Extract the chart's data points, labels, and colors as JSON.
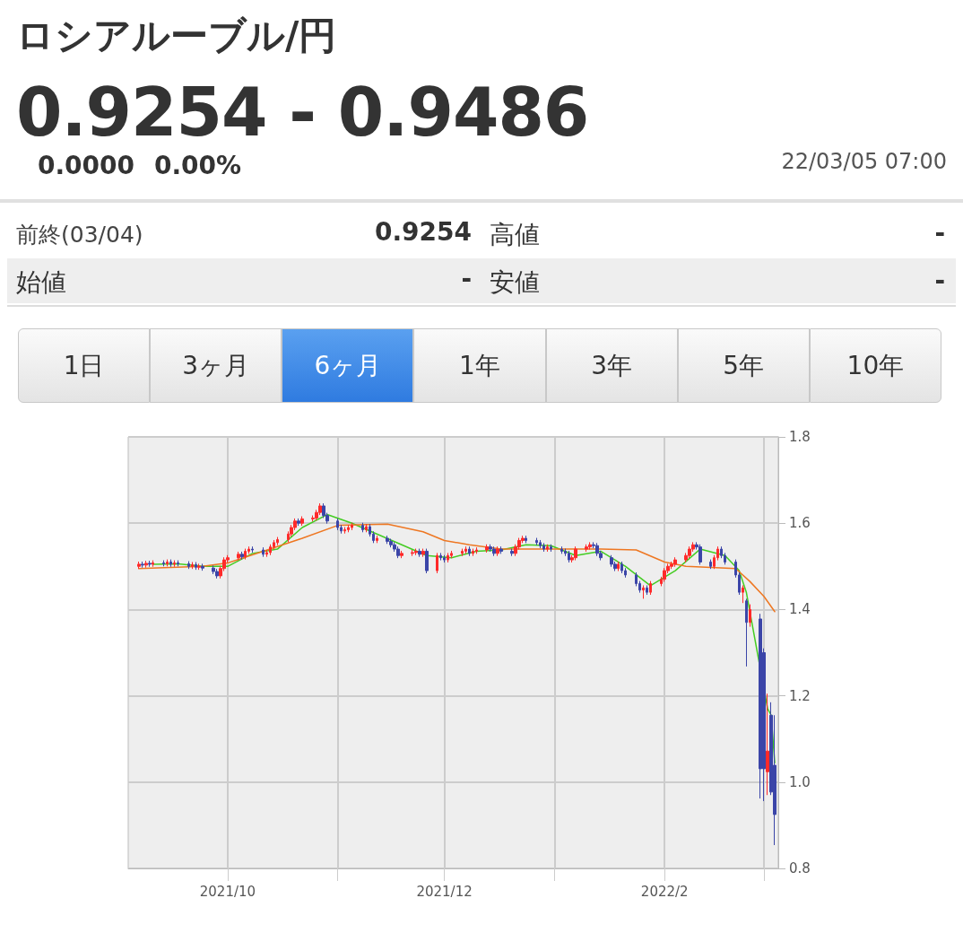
{
  "chart_data": {
    "type": "candlestick",
    "title": "ロシアルーブル/円",
    "subtitle": "0.9254 - 0.9486",
    "annotations": [
      "0.0000",
      "0.00%",
      "22/03/05 07:00",
      "前終(03/04)",
      "0.9254",
      "高値",
      "-",
      "始値",
      "-",
      "安値",
      "-",
      "1日",
      "3ヶ月",
      "6ヶ月",
      "1年",
      "3年",
      "5年",
      "10年"
    ],
    "colors": [
      "#ff2a2a",
      "#3b45a8",
      "#ff2a2a",
      "#3b45a8",
      "#ff2a2a",
      "#3b45a8",
      "#ff2a2a",
      "#3b45a8",
      "#ff2a2a",
      "#3b45a8",
      "#3b45a8",
      "#ff2a2a",
      "#3b45a8",
      "#ff2a2a",
      "#3b45a8",
      "#3b45a8",
      "#3b45a8",
      "#ff2a2a",
      "#ff2a2a",
      "#ff2a2a",
      "#ff2a2a",
      "#3b45a8",
      "#ff2a2a",
      "#ff2a2a",
      "#3b45a8",
      "#3b45a8",
      "#ff2a2a",
      "#ff2a2a",
      "#ff2a2a",
      "#ff2a2a",
      "#ff2a2a",
      "#ff2a2a",
      "#ff2a2a",
      "#3b45a8",
      "#ff2a2a",
      "#ff2a2a",
      "#ff2a2a",
      "#ff2a2a",
      "#3b45a8",
      "#3b45a8",
      "#3b45a8",
      "#3b45a8",
      "#ff2a2a",
      "#ff2a2a",
      "#ff2a2a",
      "#3b45a8",
      "#ff2a2a",
      "#3b45a8",
      "#3b45a8",
      "#ff2a2a",
      "#3b45a8",
      "#3b45a8",
      "#3b45a8",
      "#3b45a8",
      "#ff2a2a",
      "#ff2a2a",
      "#ff2a2a",
      "#3b45a8",
      "#ff2a2a",
      "#3b45a8",
      "#ff2a2a",
      "#3b45a8",
      "#3b45a8",
      "#ff2a2a",
      "#ff2a2a",
      "#ff2a2a",
      "#ff2a2a",
      "#3b45a8",
      "#ff2a2a",
      "#ff2a2a",
      "#ff2a2a",
      "#3b45a8",
      "#3b45a8",
      "#ff2a2a",
      "#3b45a8",
      "#3b45a8",
      "#ff2a2a",
      "#ff2a2a",
      "#ff2a2a",
      "#3b45a8",
      "#3b45a8",
      "#3b45a8",
      "#3b45a8",
      "#ff2a2a",
      "#3b45a8",
      "#3b45a8",
      "#3b45a8",
      "#3b45a8",
      "#ff2a2a",
      "#ff2a2a",
      "#ff2a2a",
      "#ff2a2a",
      "#3b45a8",
      "#3b45a8",
      "#3b45a8",
      "#3b45a8",
      "#3b45a8",
      "#ff2a2a",
      "#3b45a8",
      "#3b45a8",
      "#3b45a8",
      "#3b45a8",
      "#ff2a2a",
      "#3b45a8",
      "#ff2a2a",
      "#ff2a2a",
      "#ff2a2a",
      "#ff2a2a",
      "#ff2a2a",
      "#ff2a2a",
      "#ff2a2a",
      "#ff2a2a",
      "#ff2a2a",
      "#3b45a8",
      "#3b45a8",
      "#3b45a8",
      "#ff2a2a",
      "#ff2a2a",
      "#3b45a8",
      "#3b45a8",
      "#3b45a8",
      "#3b45a8",
      "#ff2a2a",
      "#3b45a8",
      "#ff2a2a",
      "#3b45a8",
      "#3b45a8",
      "#ff2a2a",
      "#3b45a8",
      "#3b45a8"
    ],
    "x": [
      "2021-09-06",
      "2021-09-07",
      "2021-09-08",
      "2021-09-09",
      "2021-09-10",
      "2021-09-13",
      "2021-09-14",
      "2021-09-15",
      "2021-09-16",
      "2021-09-17",
      "2021-09-20",
      "2021-09-21",
      "2021-09-22",
      "2021-09-23",
      "2021-09-24",
      "2021-09-27",
      "2021-09-28",
      "2021-09-29",
      "2021-09-30",
      "2021-10-01",
      "2021-10-04",
      "2021-10-05",
      "2021-10-06",
      "2021-10-07",
      "2021-10-08",
      "2021-10-11",
      "2021-10-12",
      "2021-10-13",
      "2021-10-14",
      "2021-10-15",
      "2021-10-18",
      "2021-10-19",
      "2021-10-20",
      "2021-10-21",
      "2021-10-22",
      "2021-10-25",
      "2021-10-26",
      "2021-10-27",
      "2021-10-28",
      "2021-10-29",
      "2021-11-01",
      "2021-11-02",
      "2021-11-03",
      "2021-11-04",
      "2021-11-05",
      "2021-11-08",
      "2021-11-09",
      "2021-11-10",
      "2021-11-11",
      "2021-11-12",
      "2021-11-15",
      "2021-11-16",
      "2021-11-17",
      "2021-11-18",
      "2021-11-19",
      "2021-11-22",
      "2021-11-23",
      "2021-11-24",
      "2021-11-25",
      "2021-11-26",
      "2021-11-29",
      "2021-11-30",
      "2021-12-01",
      "2021-12-02",
      "2021-12-03",
      "2021-12-06",
      "2021-12-07",
      "2021-12-08",
      "2021-12-09",
      "2021-12-10",
      "2021-12-13",
      "2021-12-14",
      "2021-12-15",
      "2021-12-16",
      "2021-12-17",
      "2021-12-20",
      "2021-12-21",
      "2021-12-22",
      "2021-12-23",
      "2021-12-24",
      "2021-12-27",
      "2021-12-28",
      "2021-12-29",
      "2021-12-30",
      "2021-12-31",
      "2022-01-03",
      "2022-01-04",
      "2022-01-05",
      "2022-01-06",
      "2022-01-07",
      "2022-01-10",
      "2022-01-11",
      "2022-01-12",
      "2022-01-13",
      "2022-01-14",
      "2022-01-17",
      "2022-01-18",
      "2022-01-19",
      "2022-01-20",
      "2022-01-21",
      "2022-01-24",
      "2022-01-25",
      "2022-01-26",
      "2022-01-27",
      "2022-01-28",
      "2022-01-31",
      "2022-02-01",
      "2022-02-02",
      "2022-02-03",
      "2022-02-04",
      "2022-02-07",
      "2022-02-08",
      "2022-02-09",
      "2022-02-10",
      "2022-02-11",
      "2022-02-14",
      "2022-02-15",
      "2022-02-16",
      "2022-02-17",
      "2022-02-18",
      "2022-02-21",
      "2022-02-22",
      "2022-02-23",
      "2022-02-24",
      "2022-02-25",
      "2022-02-28",
      "2022-03-01",
      "2022-03-02",
      "2022-03-03",
      "2022-03-04"
    ],
    "ohlc": [
      [
        1.5,
        1.511,
        1.494,
        1.505
      ],
      [
        1.505,
        1.511,
        1.497,
        1.503
      ],
      [
        1.503,
        1.513,
        1.497,
        1.507
      ],
      [
        1.507,
        1.513,
        1.499,
        1.505
      ],
      [
        1.505,
        1.514,
        1.499,
        1.508
      ],
      [
        1.508,
        1.514,
        1.5,
        1.506
      ],
      [
        1.506,
        1.516,
        1.5,
        1.51
      ],
      [
        1.51,
        1.516,
        1.499,
        1.505
      ],
      [
        1.505,
        1.514,
        1.499,
        1.508
      ],
      [
        1.508,
        1.514,
        1.5,
        1.506
      ],
      [
        1.506,
        1.512,
        1.494,
        1.5
      ],
      [
        1.5,
        1.51,
        1.494,
        1.504
      ],
      [
        1.504,
        1.51,
        1.492,
        1.498
      ],
      [
        1.498,
        1.506,
        1.492,
        1.5
      ],
      [
        1.5,
        1.506,
        1.49,
        1.496
      ],
      [
        1.496,
        1.502,
        1.482,
        1.488
      ],
      [
        1.488,
        1.494,
        1.472,
        1.478
      ],
      [
        1.478,
        1.501,
        1.472,
        1.495
      ],
      [
        1.495,
        1.521,
        1.489,
        1.515
      ],
      [
        1.515,
        1.526,
        1.509,
        1.52
      ],
      [
        1.52,
        1.534,
        1.514,
        1.528
      ],
      [
        1.528,
        1.534,
        1.516,
        1.522
      ],
      [
        1.522,
        1.541,
        1.516,
        1.535
      ],
      [
        1.535,
        1.546,
        1.529,
        1.54
      ],
      [
        1.54,
        1.546,
        1.532,
        1.538
      ],
      [
        1.538,
        1.544,
        1.522,
        1.528
      ],
      [
        1.528,
        1.538,
        1.522,
        1.532
      ],
      [
        1.532,
        1.551,
        1.526,
        1.545
      ],
      [
        1.545,
        1.561,
        1.539,
        1.555
      ],
      [
        1.555,
        1.568,
        1.549,
        1.562
      ],
      [
        1.562,
        1.581,
        1.556,
        1.575
      ],
      [
        1.575,
        1.596,
        1.569,
        1.59
      ],
      [
        1.59,
        1.611,
        1.584,
        1.605
      ],
      [
        1.605,
        1.611,
        1.594,
        1.6
      ],
      [
        1.6,
        1.616,
        1.594,
        1.61
      ],
      [
        1.61,
        1.618,
        1.604,
        1.612
      ],
      [
        1.612,
        1.631,
        1.606,
        1.625
      ],
      [
        1.625,
        1.646,
        1.619,
        1.64
      ],
      [
        1.64,
        1.646,
        1.612,
        1.618
      ],
      [
        1.618,
        1.624,
        1.599,
        1.605
      ],
      [
        1.605,
        1.611,
        1.584,
        1.59
      ],
      [
        1.59,
        1.596,
        1.576,
        1.582
      ],
      [
        1.582,
        1.591,
        1.576,
        1.585
      ],
      [
        1.585,
        1.596,
        1.579,
        1.59
      ],
      [
        1.59,
        1.601,
        1.584,
        1.595
      ],
      [
        1.595,
        1.601,
        1.579,
        1.585
      ],
      [
        1.585,
        1.598,
        1.579,
        1.592
      ],
      [
        1.592,
        1.598,
        1.569,
        1.575
      ],
      [
        1.575,
        1.581,
        1.554,
        1.56
      ],
      [
        1.56,
        1.571,
        1.554,
        1.565
      ],
      [
        1.565,
        1.571,
        1.552,
        1.558
      ],
      [
        1.558,
        1.564,
        1.544,
        1.55
      ],
      [
        1.55,
        1.556,
        1.534,
        1.54
      ],
      [
        1.54,
        1.546,
        1.519,
        1.525
      ],
      [
        1.525,
        1.536,
        1.519,
        1.53
      ],
      [
        1.53,
        1.538,
        1.524,
        1.532
      ],
      [
        1.532,
        1.541,
        1.526,
        1.535
      ],
      [
        1.535,
        1.541,
        1.522,
        1.528
      ],
      [
        1.528,
        1.541,
        1.522,
        1.535
      ],
      [
        1.535,
        1.541,
        1.484,
        1.49
      ],
      [
        1.49,
        1.531,
        1.484,
        1.525
      ],
      [
        1.525,
        1.531,
        1.514,
        1.52
      ],
      [
        1.52,
        1.526,
        1.509,
        1.515
      ],
      [
        1.515,
        1.531,
        1.509,
        1.525
      ],
      [
        1.525,
        1.536,
        1.519,
        1.53
      ],
      [
        1.53,
        1.541,
        1.524,
        1.535
      ],
      [
        1.535,
        1.546,
        1.529,
        1.54
      ],
      [
        1.54,
        1.546,
        1.524,
        1.53
      ],
      [
        1.53,
        1.541,
        1.524,
        1.535
      ],
      [
        1.535,
        1.544,
        1.529,
        1.538
      ],
      [
        1.538,
        1.551,
        1.532,
        1.545
      ],
      [
        1.545,
        1.551,
        1.534,
        1.54
      ],
      [
        1.54,
        1.546,
        1.524,
        1.53
      ],
      [
        1.53,
        1.546,
        1.524,
        1.54
      ],
      [
        1.54,
        1.546,
        1.529,
        1.535
      ],
      [
        1.535,
        1.541,
        1.524,
        1.53
      ],
      [
        1.53,
        1.551,
        1.524,
        1.545
      ],
      [
        1.545,
        1.566,
        1.539,
        1.56
      ],
      [
        1.56,
        1.571,
        1.554,
        1.565
      ],
      [
        1.565,
        1.571,
        1.554,
        1.56
      ],
      [
        1.56,
        1.566,
        1.549,
        1.555
      ],
      [
        1.555,
        1.561,
        1.542,
        1.548
      ],
      [
        1.548,
        1.554,
        1.534,
        1.54
      ],
      [
        1.54,
        1.551,
        1.534,
        1.545
      ],
      [
        1.545,
        1.551,
        1.534,
        1.54
      ],
      [
        1.54,
        1.546,
        1.529,
        1.535
      ],
      [
        1.535,
        1.541,
        1.524,
        1.53
      ],
      [
        1.53,
        1.536,
        1.509,
        1.515
      ],
      [
        1.515,
        1.526,
        1.509,
        1.52
      ],
      [
        1.52,
        1.546,
        1.514,
        1.54
      ],
      [
        1.54,
        1.551,
        1.534,
        1.545
      ],
      [
        1.545,
        1.556,
        1.539,
        1.55
      ],
      [
        1.55,
        1.556,
        1.542,
        1.548
      ],
      [
        1.548,
        1.554,
        1.524,
        1.53
      ],
      [
        1.53,
        1.536,
        1.514,
        1.52
      ],
      [
        1.52,
        1.526,
        1.499,
        1.505
      ],
      [
        1.505,
        1.511,
        1.489,
        1.495
      ],
      [
        1.495,
        1.511,
        1.489,
        1.505
      ],
      [
        1.505,
        1.511,
        1.484,
        1.49
      ],
      [
        1.49,
        1.496,
        1.474,
        1.48
      ],
      [
        1.48,
        1.486,
        1.454,
        1.46
      ],
      [
        1.46,
        1.466,
        1.439,
        1.445
      ],
      [
        1.445,
        1.456,
        1.425,
        1.45
      ],
      [
        1.45,
        1.456,
        1.434,
        1.44
      ],
      [
        1.44,
        1.466,
        1.434,
        1.46
      ],
      [
        1.46,
        1.476,
        1.454,
        1.47
      ],
      [
        1.47,
        1.496,
        1.464,
        1.49
      ],
      [
        1.49,
        1.506,
        1.484,
        1.5
      ],
      [
        1.5,
        1.511,
        1.494,
        1.505
      ],
      [
        1.505,
        1.521,
        1.499,
        1.515
      ],
      [
        1.515,
        1.531,
        1.509,
        1.525
      ],
      [
        1.525,
        1.546,
        1.519,
        1.54
      ],
      [
        1.54,
        1.556,
        1.534,
        1.55
      ],
      [
        1.55,
        1.556,
        1.539,
        1.545
      ],
      [
        1.545,
        1.551,
        1.504,
        1.51
      ],
      [
        1.51,
        1.516,
        1.494,
        1.5
      ],
      [
        1.5,
        1.526,
        1.494,
        1.52
      ],
      [
        1.52,
        1.546,
        1.514,
        1.54
      ],
      [
        1.54,
        1.546,
        1.519,
        1.525
      ],
      [
        1.525,
        1.531,
        1.504,
        1.51
      ],
      [
        1.51,
        1.516,
        1.474,
        1.48
      ],
      [
        1.48,
        1.486,
        1.434,
        1.44
      ],
      [
        1.44,
        1.456,
        1.415,
        1.45
      ],
      [
        1.42,
        1.425,
        1.268,
        1.37
      ],
      [
        1.37,
        1.412,
        1.36,
        1.4
      ],
      [
        1.378,
        1.39,
        0.962,
        1.031
      ],
      [
        1.3,
        1.31,
        0.956,
        1.031
      ],
      [
        1.024,
        1.205,
        0.97,
        1.072
      ],
      [
        1.155,
        1.185,
        0.97,
        0.977
      ],
      [
        1.039,
        1.155,
        0.854,
        0.925
      ]
    ],
    "series": [
      {
        "type": "line",
        "color": "#44cc22",
        "x": [
          "2021-09-10",
          "2021-09-17",
          "2021-09-24",
          "2021-10-01",
          "2021-10-08",
          "2021-10-15",
          "2021-10-22",
          "2021-10-29",
          "2021-11-05",
          "2021-11-12",
          "2021-11-19",
          "2021-11-26",
          "2021-12-03",
          "2021-12-10",
          "2021-12-17",
          "2021-12-24",
          "2021-12-31",
          "2022-01-07",
          "2022-01-14",
          "2022-01-21",
          "2022-01-28",
          "2022-02-04",
          "2022-02-11",
          "2022-02-18",
          "2022-02-22",
          "2022-02-24",
          "2022-02-28",
          "2022-03-01",
          "2022-03-02",
          "2022-03-03",
          "2022-03-04"
        ],
        "values": [
          1.505,
          1.506,
          1.5,
          1.5,
          1.53,
          1.54,
          1.59,
          1.62,
          1.6,
          1.575,
          1.55,
          1.525,
          1.52,
          1.535,
          1.538,
          1.55,
          1.548,
          1.525,
          1.535,
          1.5,
          1.455,
          1.49,
          1.54,
          1.525,
          1.49,
          1.44,
          null,
          null,
          1.17,
          1.155,
          1.045
        ]
      },
      {
        "type": "line",
        "color": "#ee7722",
        "x": [
          "2021-09-06",
          "2021-09-24",
          "2021-10-01",
          "2021-10-11",
          "2021-10-22",
          "2021-11-01",
          "2021-11-15",
          "2021-11-25",
          "2021-12-01",
          "2021-12-08",
          "2021-12-17",
          "2022-01-14",
          "2022-01-24",
          "2022-02-01",
          "2022-02-07",
          "2022-02-21",
          "2022-02-25",
          "2022-03-01",
          "2022-03-04"
        ],
        "values": [
          1.495,
          1.5,
          1.508,
          1.535,
          1.565,
          1.595,
          1.598,
          1.58,
          1.56,
          1.55,
          1.54,
          1.54,
          1.538,
          1.51,
          1.5,
          1.495,
          1.465,
          1.43,
          1.395
        ]
      }
    ],
    "xlim": [
      "2021-09-03",
      "2022-03-05"
    ],
    "xticks": [
      {
        "value": "2021-10-01",
        "label": "2021/10"
      },
      {
        "value": "2021-11-01",
        "label": null
      },
      {
        "value": "2021-12-01",
        "label": "2021/12"
      },
      {
        "value": "2022-01-01",
        "label": null
      },
      {
        "value": "2022-02-01",
        "label": "2022/2"
      },
      {
        "value": "2022-03-01",
        "label": null
      }
    ],
    "ylim": [
      0.8,
      1.8
    ],
    "yticks": [
      0.8,
      {
        "value": 1,
        "label": "1.0"
      },
      1.2,
      1.4,
      1.6,
      1.8
    ],
    "grid": true
  }
}
